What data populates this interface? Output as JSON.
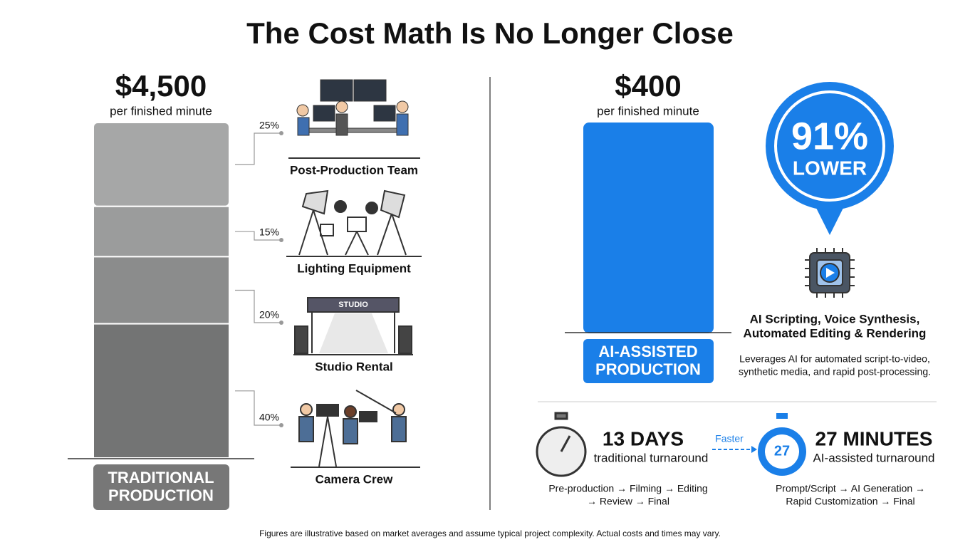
{
  "title": "The Cost Math Is No Longer Close",
  "traditional": {
    "amount": "$4,500",
    "unit": "per finished minute",
    "label_lines": [
      "TRADITIONAL",
      "PRODUCTION"
    ],
    "components": [
      {
        "share": 25,
        "share_label": "25%",
        "name": "Post-Production Team"
      },
      {
        "share": 15,
        "share_label": "15%",
        "name": "Lighting Equipment"
      },
      {
        "share": 20,
        "share_label": "20%",
        "name": "Studio Rental"
      },
      {
        "share": 40,
        "share_label": "40%",
        "name": "Camera Crew"
      }
    ]
  },
  "ai": {
    "amount": "$400",
    "unit": "per finished minute",
    "label_lines": [
      "AI-ASSISTED",
      "PRODUCTION"
    ],
    "badge": {
      "percent": "91%",
      "word": "LOWER"
    },
    "heading_lines": [
      "AI Scripting, Voice Synthesis,",
      "Automated Editing & Rendering"
    ],
    "description_lines": [
      "Leverages AI for automated script-to-video,",
      "synthetic media, and rapid post-processing."
    ]
  },
  "turnaround": {
    "traditional": {
      "value": "13 DAYS",
      "caption": "traditional turnaround",
      "flow_lines": [
        "Pre-production → Filming → Editing",
        "→ Review → Final"
      ]
    },
    "comparison": "Faster",
    "ai": {
      "value": "27 MINUTES",
      "clock_label": "27",
      "caption": "AI-assisted turnaround",
      "flow_lines": [
        "Prompt/Script → AI Generation →",
        "Rapid Customization → Final"
      ]
    }
  },
  "footnote": "Figures are illustrative based on market averages and assume typical project complexity. Actual costs and times may vary."
}
